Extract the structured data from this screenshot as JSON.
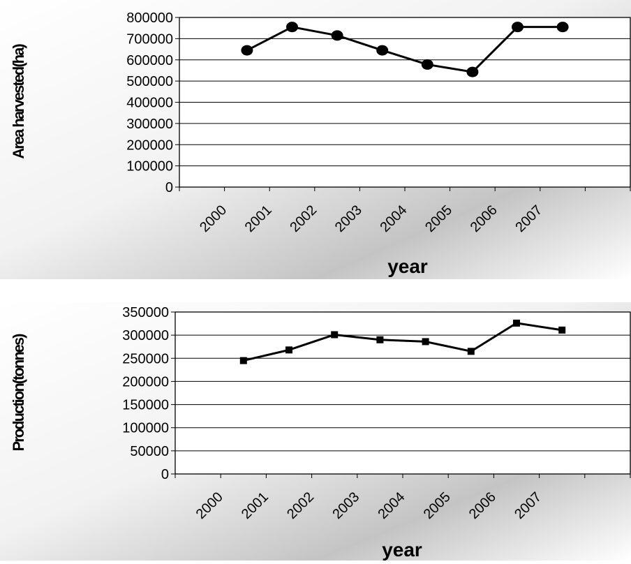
{
  "chart_data": [
    {
      "type": "line",
      "title": "",
      "xlabel": "year",
      "ylabel": "Area harvested(ha)",
      "categories": [
        "2000",
        "2001",
        "2002",
        "2003",
        "2004",
        "2005",
        "2006",
        "2007"
      ],
      "ylim": [
        0,
        800000
      ],
      "yticks": [
        "0",
        "100000",
        "200000",
        "300000",
        "400000",
        "500000",
        "600000",
        "700000",
        "800000"
      ],
      "grid": true,
      "legend": "none",
      "marker": "circle",
      "series": [
        {
          "values": [
            645000,
            755000,
            715000,
            645000,
            578000,
            543000,
            755000,
            755000
          ]
        }
      ]
    },
    {
      "type": "line",
      "title": "",
      "xlabel": "year",
      "ylabel": "Production(tonnes)",
      "categories": [
        "2000",
        "2001",
        "2002",
        "2003",
        "2004",
        "2005",
        "2006",
        "2007"
      ],
      "ylim": [
        0,
        350000
      ],
      "yticks": [
        "0",
        "50000",
        "100000",
        "150000",
        "200000",
        "250000",
        "300000",
        "350000"
      ],
      "grid": true,
      "legend": "none",
      "marker": "square",
      "series": [
        {
          "values": [
            245000,
            268000,
            301000,
            290000,
            286000,
            265000,
            326000,
            311000
          ]
        }
      ]
    }
  ]
}
